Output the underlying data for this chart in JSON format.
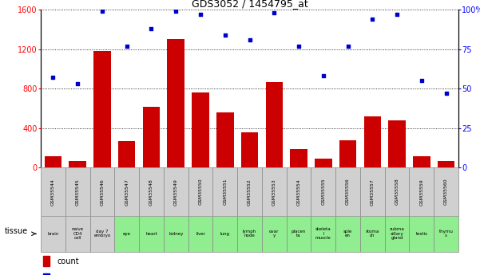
{
  "title": "GDS3052 / 1454795_at",
  "samples": [
    "GSM35544",
    "GSM35545",
    "GSM35546",
    "GSM35547",
    "GSM35548",
    "GSM35549",
    "GSM35550",
    "GSM35551",
    "GSM35552",
    "GSM35553",
    "GSM35554",
    "GSM35555",
    "GSM35556",
    "GSM35557",
    "GSM35558",
    "GSM35559",
    "GSM35560"
  ],
  "counts": [
    120,
    65,
    1180,
    270,
    620,
    1300,
    760,
    560,
    360,
    870,
    190,
    95,
    280,
    520,
    480,
    115,
    70
  ],
  "percentiles": [
    57,
    53,
    99,
    77,
    88,
    99,
    97,
    84,
    81,
    98,
    77,
    58,
    77,
    94,
    97,
    55,
    47
  ],
  "tissues": [
    "brain",
    "naive\nCD4\ncell",
    "day 7\nembryо",
    "eye",
    "heart",
    "kidney",
    "liver",
    "lung",
    "lymph\nnode",
    "ovar\ny",
    "placen\nta",
    "skeleta\nl\nmuscle",
    "sple\nen",
    "stoma\nch",
    "subma\nxillary\ngland",
    "testis",
    "thymu\ns"
  ],
  "tissue_colors": [
    "#d0d0d0",
    "#d0d0d0",
    "#d0d0d0",
    "#90ee90",
    "#90ee90",
    "#90ee90",
    "#90ee90",
    "#90ee90",
    "#90ee90",
    "#90ee90",
    "#90ee90",
    "#90ee90",
    "#90ee90",
    "#90ee90",
    "#90ee90",
    "#90ee90",
    "#90ee90"
  ],
  "bar_color": "#cc0000",
  "dot_color": "#0000cc",
  "ylim_left": [
    0,
    1600
  ],
  "ylim_right": [
    0,
    100
  ],
  "yticks_left": [
    0,
    400,
    800,
    1200,
    1600
  ],
  "yticks_right": [
    0,
    25,
    50,
    75,
    100
  ],
  "ytick_labels_right": [
    "0",
    "25",
    "50",
    "75",
    "100%"
  ],
  "grid_color": "#000000",
  "header_bg": "#d0d0d0"
}
